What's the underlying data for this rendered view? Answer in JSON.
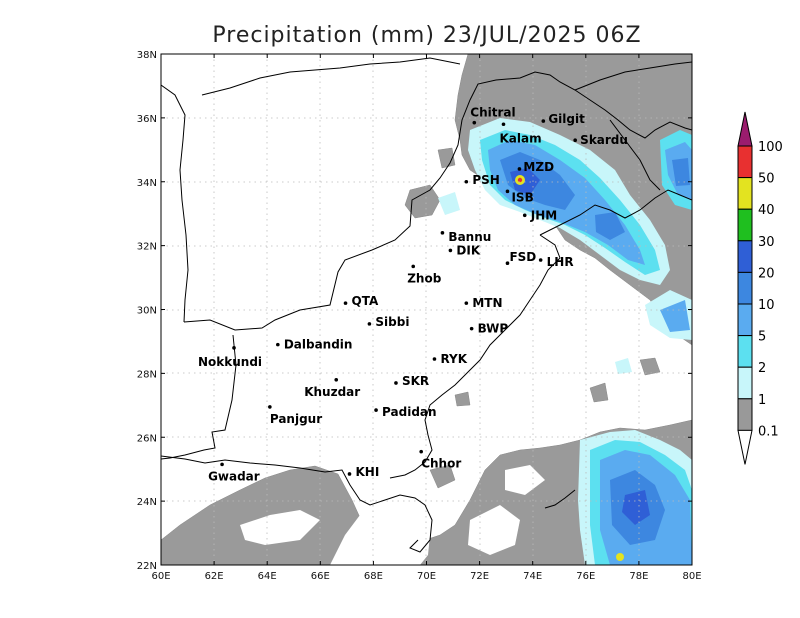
{
  "title": "Precipitation (mm) 23/JUL/2025 06Z",
  "axes": {
    "lon_ticks": [
      "60E",
      "62E",
      "64E",
      "66E",
      "68E",
      "70E",
      "72E",
      "74E",
      "76E",
      "78E",
      "80E"
    ],
    "lat_ticks": [
      "22N",
      "24N",
      "26N",
      "28N",
      "30N",
      "32N",
      "34N",
      "36N",
      "38N"
    ],
    "lon_range": [
      60,
      80
    ],
    "lat_range": [
      22,
      38
    ],
    "grid": "dotted"
  },
  "colorbar": {
    "labels": [
      "0.1",
      "1",
      "2",
      "5",
      "10",
      "20",
      "30",
      "40",
      "50",
      "100"
    ],
    "colors": [
      "#999999",
      "#c8f6fa",
      "#5ce0f0",
      "#5aabf0",
      "#3d87e0",
      "#2f5fd6",
      "#1fbf1f",
      "#e3e320",
      "#e83030",
      "#9b1c6e"
    ]
  },
  "cities": [
    {
      "name": "Chitral",
      "lon": 71.8,
      "lat": 35.85
    },
    {
      "name": "Gilgit",
      "lon": 74.4,
      "lat": 35.9
    },
    {
      "name": "Kalam",
      "lon": 72.9,
      "lat": 35.8
    },
    {
      "name": "Skardu",
      "lon": 75.6,
      "lat": 35.3
    },
    {
      "name": "MZD",
      "lon": 73.5,
      "lat": 34.4
    },
    {
      "name": "PSH",
      "lon": 71.5,
      "lat": 34.0
    },
    {
      "name": "ISB",
      "lon": 73.05,
      "lat": 33.7
    },
    {
      "name": "JHM",
      "lon": 73.7,
      "lat": 32.95
    },
    {
      "name": "Bannu",
      "lon": 70.6,
      "lat": 32.4
    },
    {
      "name": "DIK",
      "lon": 70.9,
      "lat": 31.85
    },
    {
      "name": "FSD",
      "lon": 73.05,
      "lat": 31.45
    },
    {
      "name": "LHR",
      "lon": 74.3,
      "lat": 31.55
    },
    {
      "name": "Zhob",
      "lon": 69.5,
      "lat": 31.35
    },
    {
      "name": "QTA",
      "lon": 66.95,
      "lat": 30.2
    },
    {
      "name": "MTN",
      "lon": 71.5,
      "lat": 30.2
    },
    {
      "name": "Sibbi",
      "lon": 67.85,
      "lat": 29.55
    },
    {
      "name": "BWP",
      "lon": 71.7,
      "lat": 29.4
    },
    {
      "name": "Nokkundi",
      "lon": 62.75,
      "lat": 28.8
    },
    {
      "name": "Dalbandin",
      "lon": 64.4,
      "lat": 28.9
    },
    {
      "name": "RYK",
      "lon": 70.3,
      "lat": 28.45
    },
    {
      "name": "SKR",
      "lon": 68.85,
      "lat": 27.7
    },
    {
      "name": "Khuzdar",
      "lon": 66.6,
      "lat": 27.8
    },
    {
      "name": "Panjgur",
      "lon": 64.1,
      "lat": 26.95
    },
    {
      "name": "Padidan",
      "lon": 68.1,
      "lat": 26.85
    },
    {
      "name": "Chhor",
      "lon": 69.8,
      "lat": 25.55
    },
    {
      "name": "KHI",
      "lon": 67.1,
      "lat": 24.85
    },
    {
      "name": "Gwadar",
      "lon": 62.3,
      "lat": 25.15
    }
  ]
}
